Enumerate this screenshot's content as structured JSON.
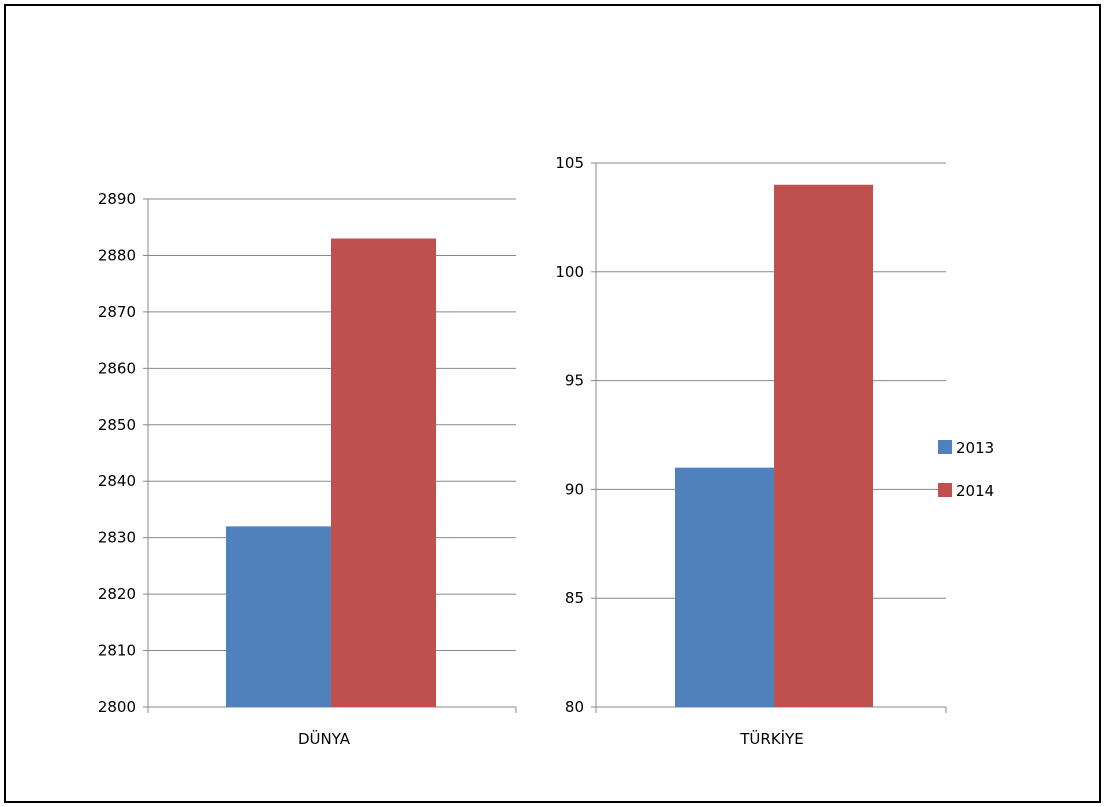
{
  "chart_data": [
    {
      "type": "bar",
      "categories": [
        "DÜNYA"
      ],
      "series": [
        {
          "name": "2013",
          "values": [
            2832
          ]
        },
        {
          "name": "2014",
          "values": [
            2883
          ]
        }
      ],
      "ylim": [
        2800,
        2890
      ],
      "yticks": [
        2800,
        2810,
        2820,
        2830,
        2840,
        2850,
        2860,
        2870,
        2880,
        2890
      ],
      "grid": true
    },
    {
      "type": "bar",
      "categories": [
        "TÜRKİYE"
      ],
      "series": [
        {
          "name": "2013",
          "values": [
            91
          ]
        },
        {
          "name": "2014",
          "values": [
            104
          ]
        }
      ],
      "ylim": [
        80,
        105
      ],
      "yticks": [
        80,
        85,
        90,
        95,
        100,
        105
      ],
      "grid": true
    }
  ],
  "legend": {
    "placement": "right",
    "entries": [
      {
        "label": "2013",
        "color": "#4F81BD"
      },
      {
        "label": "2014",
        "color": "#C0504D"
      }
    ]
  }
}
